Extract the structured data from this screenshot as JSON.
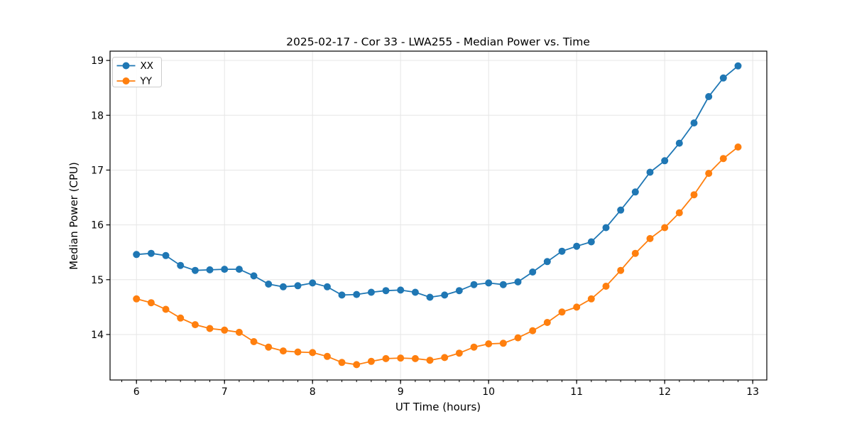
{
  "chart_data": {
    "type": "line",
    "title": "2025-02-17 - Cor 33 - LWA255 - Median Power vs. Time",
    "xlabel": "UT Time (hours)",
    "ylabel": "Median Power (CPU)",
    "xlim": [
      5.7,
      13.16
    ],
    "ylim": [
      13.17,
      19.17
    ],
    "xticks": [
      6,
      7,
      8,
      9,
      10,
      11,
      12,
      13
    ],
    "yticks": [
      14,
      15,
      16,
      17,
      18,
      19
    ],
    "x_minor_tick_step_hours": 0.16667,
    "grid": true,
    "legend_position": "upper-left",
    "x": [
      6.0,
      6.1667,
      6.3333,
      6.5,
      6.6667,
      6.8333,
      7.0,
      7.1667,
      7.3333,
      7.5,
      7.6667,
      7.8333,
      8.0,
      8.1667,
      8.3333,
      8.5,
      8.6667,
      8.8333,
      9.0,
      9.1667,
      9.3333,
      9.5,
      9.6667,
      9.8333,
      10.0,
      10.1667,
      10.3333,
      10.5,
      10.6667,
      10.8333,
      11.0,
      11.1667,
      11.3333,
      11.5,
      11.6667,
      11.8333,
      12.0,
      12.1667,
      12.3333,
      12.5,
      12.6667,
      12.8333
    ],
    "series": [
      {
        "name": "XX",
        "color": "#1f77b4",
        "values": [
          15.46,
          15.48,
          15.44,
          15.26,
          15.17,
          15.18,
          15.19,
          15.19,
          15.07,
          14.92,
          14.87,
          14.89,
          14.94,
          14.87,
          14.72,
          14.73,
          14.77,
          14.8,
          14.81,
          14.77,
          14.68,
          14.72,
          14.8,
          14.91,
          14.94,
          14.91,
          14.96,
          15.14,
          15.33,
          15.52,
          15.61,
          15.69,
          15.95,
          16.27,
          16.6,
          16.96,
          17.17,
          17.49,
          17.86,
          18.34,
          18.68,
          18.9
        ]
      },
      {
        "name": "YY",
        "color": "#ff7f0e",
        "values": [
          14.65,
          14.58,
          14.46,
          14.3,
          14.18,
          14.11,
          14.08,
          14.04,
          13.87,
          13.77,
          13.7,
          13.68,
          13.67,
          13.6,
          13.49,
          13.45,
          13.51,
          13.56,
          13.57,
          13.56,
          13.53,
          13.58,
          13.66,
          13.77,
          13.83,
          13.84,
          13.94,
          14.07,
          14.22,
          14.41,
          14.5,
          14.65,
          14.88,
          15.17,
          15.48,
          15.75,
          15.95,
          16.22,
          16.55,
          16.94,
          17.21,
          17.42
        ]
      }
    ],
    "colors": {
      "grid": "#e6e6e6",
      "spine": "#000000",
      "legend_border": "#cccccc"
    }
  }
}
